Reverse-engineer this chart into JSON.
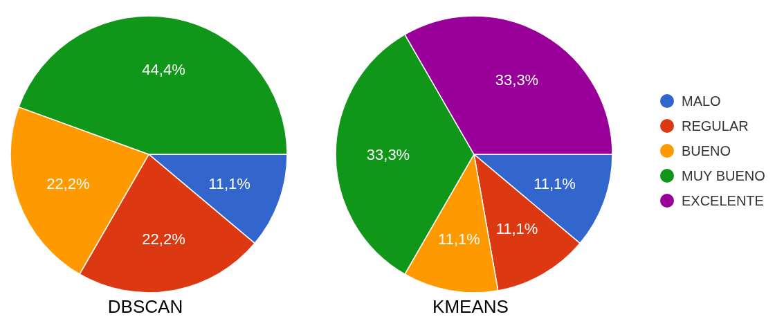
{
  "chart_data": [
    {
      "type": "pie",
      "title": "DBSCAN",
      "categories": [
        null,
        null,
        null,
        null
      ],
      "values": [
        11.1,
        22.2,
        22.2,
        44.4
      ],
      "colors": [
        "#3366cc",
        "#dc3912",
        "#ff9900",
        "#109618"
      ],
      "value_labels": [
        "11,1%",
        "22,2%",
        "22,2%",
        "44,4%"
      ]
    },
    {
      "type": "pie",
      "title": "KMEANS",
      "categories": [
        "MALO",
        "REGULAR",
        "BUENO",
        "MUY BUENO",
        "EXCELENTE"
      ],
      "values": [
        11.1,
        11.1,
        11.1,
        33.3,
        33.3
      ],
      "colors": [
        "#3366cc",
        "#dc3912",
        "#ff9900",
        "#109618",
        "#990099"
      ],
      "value_labels": [
        "11,1%",
        "11,1%",
        "11,1%",
        "33,3%",
        "33,3%"
      ],
      "legend": "right"
    }
  ]
}
